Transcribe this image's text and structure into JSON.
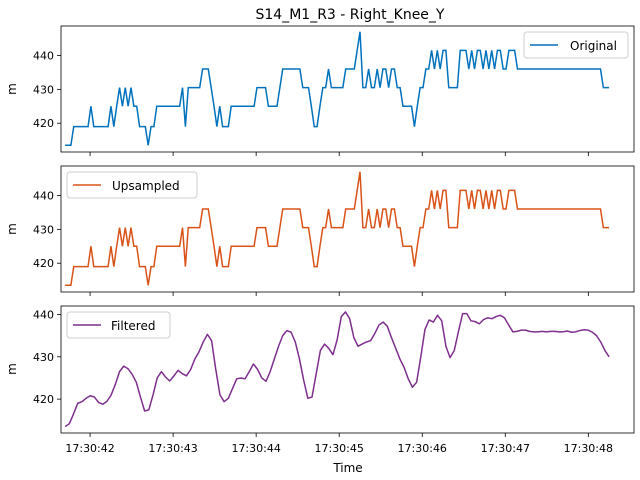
{
  "figure": {
    "title": "S14_M1_R3 - Right_Knee_Y"
  },
  "chart_data": [
    {
      "type": "line",
      "legend": "top-right",
      "ylabel": "m",
      "xlabel": "",
      "series": [
        {
          "name": "Original",
          "color": "#0072bd"
        }
      ],
      "ylim": [
        411.5,
        448.7
      ],
      "yticks": [
        420,
        430,
        440
      ]
    },
    {
      "type": "line",
      "legend": "top-left",
      "ylabel": "m",
      "xlabel": "",
      "series": [
        {
          "name": "Upsampled",
          "color": "#d95319"
        }
      ],
      "ylim": [
        411.5,
        448.7
      ],
      "yticks": [
        420,
        430,
        440
      ]
    },
    {
      "type": "line",
      "legend": "top-left",
      "ylabel": "m",
      "xlabel": "Time",
      "series": [
        {
          "name": "Filtered",
          "color": "#7e2f8e"
        }
      ],
      "ylim": [
        412.0,
        442.0
      ],
      "yticks": [
        420,
        430,
        440
      ]
    }
  ],
  "x_axis": {
    "xlim": [
      "17:30:41.65",
      "17:30:48.55"
    ],
    "ticks": [
      "17:30:42",
      "17:30:43",
      "17:30:44",
      "17:30:45",
      "17:30:46",
      "17:30:47",
      "17:30:48"
    ]
  },
  "signal": {
    "x_start": "17:30:41.70",
    "x_end": "17:30:48.25",
    "raw_values": [
      413.5,
      413.5,
      413.5,
      419,
      419,
      419,
      419,
      419,
      419,
      425,
      419,
      419,
      419,
      419,
      419,
      419,
      425,
      419,
      425,
      430.5,
      425,
      430.5,
      425,
      430.5,
      425,
      425,
      419,
      419,
      419,
      413.5,
      419,
      419,
      425,
      425,
      425,
      425,
      425,
      425,
      425,
      425,
      425,
      430.5,
      419,
      430.5,
      430.5,
      430.5,
      430.5,
      430.5,
      436,
      436,
      436,
      430.5,
      425,
      419,
      425,
      419,
      419,
      419,
      425,
      425,
      425,
      425,
      425,
      425,
      425,
      425,
      425,
      430.5,
      430.5,
      430.5,
      430.5,
      425,
      425,
      425,
      425,
      430.5,
      436,
      436,
      436,
      436,
      436,
      436,
      436,
      430.5,
      430.5,
      430.5,
      425,
      419,
      419,
      425,
      430.5,
      430.5,
      436,
      430.5,
      430.5,
      430.5,
      430.5,
      430.5,
      436,
      436,
      436,
      436,
      441.5,
      447,
      430.5,
      430.5,
      436,
      430.5,
      430.5,
      436,
      430.5,
      436,
      436,
      430.5,
      436,
      436,
      430.5,
      430.5,
      425,
      425,
      425,
      425,
      419,
      425,
      430.5,
      430.5,
      436,
      436,
      441.5,
      436,
      441.5,
      436,
      441.5,
      441.5,
      430.5,
      430.5,
      430.5,
      430.5,
      441.5,
      441.5,
      441.5,
      436,
      441.5,
      436,
      441.5,
      441.5,
      436,
      441.5,
      436,
      441.5,
      436,
      441.5,
      441.5,
      436,
      436,
      441.5,
      441.5,
      441.5,
      436,
      436,
      436,
      436,
      436,
      436,
      436,
      436,
      436,
      436,
      436,
      436,
      436,
      436,
      436,
      436,
      436,
      436,
      436,
      436,
      436,
      436,
      436,
      436,
      436,
      436,
      436,
      436,
      436,
      436,
      430.5,
      430.5,
      430.5
    ],
    "filtered_values": [
      413.5,
      414.2,
      416.5,
      419.0,
      419.4,
      420.2,
      420.8,
      420.5,
      419.2,
      418.8,
      419.5,
      421.0,
      423.5,
      426.5,
      427.8,
      427.2,
      425.9,
      424.0,
      420.5,
      417.2,
      417.5,
      421.0,
      425.0,
      426.5,
      425.2,
      424.3,
      425.5,
      426.8,
      426.0,
      425.5,
      427.0,
      429.5,
      431.2,
      433.5,
      435.3,
      433.8,
      427.0,
      421.0,
      419.4,
      420.2,
      422.5,
      424.8,
      425.0,
      424.8,
      426.5,
      428.3,
      427.0,
      425.0,
      424.2,
      426.5,
      429.5,
      432.5,
      435.0,
      436.2,
      435.8,
      433.5,
      429.5,
      424.5,
      420.2,
      420.5,
      426.0,
      431.5,
      433.0,
      432.0,
      430.5,
      434.0,
      439.5,
      440.6,
      439.0,
      434.5,
      432.5,
      433.0,
      433.5,
      433.8,
      435.5,
      437.5,
      438.2,
      437.2,
      434.5,
      432.0,
      429.5,
      427.5,
      424.8,
      422.8,
      424.0,
      430.0,
      436.5,
      438.7,
      438.2,
      439.8,
      438.5,
      432.5,
      429.8,
      431.5,
      436.0,
      440.2,
      440.2,
      438.5,
      438.3,
      437.8,
      438.8,
      439.2,
      439.0,
      439.5,
      439.8,
      439.2,
      437.5,
      435.9,
      436.0,
      436.3,
      436.3,
      436.0,
      435.9,
      435.9,
      436.0,
      435.9,
      436.0,
      436.0,
      435.9,
      435.9,
      436.1,
      435.8,
      435.9,
      436.2,
      436.4,
      436.3,
      435.8,
      435.0,
      433.5,
      431.5,
      430.0
    ]
  }
}
